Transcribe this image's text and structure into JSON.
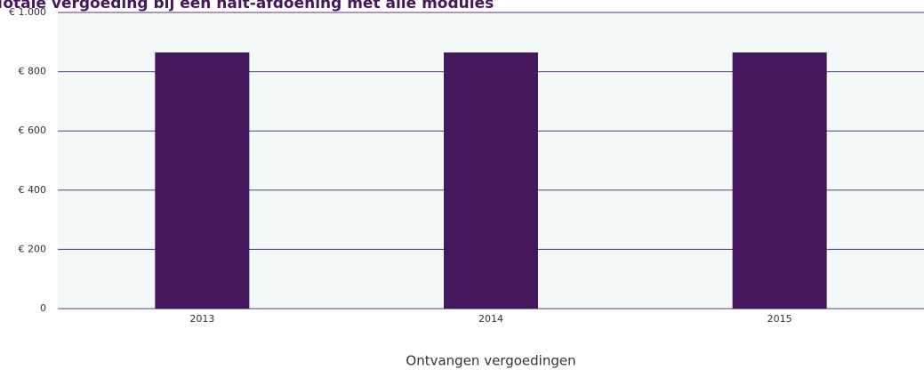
{
  "chart_data": {
    "type": "bar",
    "title": "Totale vergoeding bij een halt-afdoening met alle modules",
    "x_label": "Ontvangen vergoedingen",
    "categories": [
      "2013",
      "2014",
      "2015"
    ],
    "values": [
      865,
      865,
      865
    ],
    "color": "#45175d",
    "ylim": [
      0,
      1000
    ],
    "yticks": [
      0,
      {
        "value": 200,
        "label": "€ 200"
      },
      {
        "value": 400,
        "label": "€ 400"
      },
      {
        "value": 600,
        "label": "€ 600"
      },
      {
        "value": 800,
        "label": "€ 800"
      },
      {
        "value": 1000,
        "label": "€ 1.000"
      }
    ],
    "grid": true
  }
}
